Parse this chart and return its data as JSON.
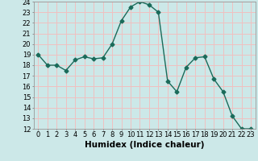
{
  "x": [
    0,
    1,
    2,
    3,
    4,
    5,
    6,
    7,
    8,
    9,
    10,
    11,
    12,
    13,
    14,
    15,
    16,
    17,
    18,
    19,
    20,
    21,
    22,
    23
  ],
  "y": [
    19,
    18,
    18,
    17.5,
    18.5,
    18.8,
    18.6,
    18.7,
    20,
    22.2,
    23.5,
    24,
    23.7,
    23,
    16.5,
    15.5,
    17.8,
    18.7,
    18.8,
    16.7,
    15.5,
    13.2,
    12,
    12
  ],
  "xlabel": "Humidex (Indice chaleur)",
  "xlim_min": -0.5,
  "xlim_max": 23.5,
  "ylim_min": 12,
  "ylim_max": 24,
  "yticks": [
    12,
    13,
    14,
    15,
    16,
    17,
    18,
    19,
    20,
    21,
    22,
    23,
    24
  ],
  "xticks": [
    0,
    1,
    2,
    3,
    4,
    5,
    6,
    7,
    8,
    9,
    10,
    11,
    12,
    13,
    14,
    15,
    16,
    17,
    18,
    19,
    20,
    21,
    22,
    23
  ],
  "line_color": "#1a6b5a",
  "marker": "D",
  "marker_size": 2.5,
  "bg_color": "#cce8e8",
  "grid_color": "#f0c0c0",
  "label_fontsize": 7.5,
  "tick_fontsize": 6
}
